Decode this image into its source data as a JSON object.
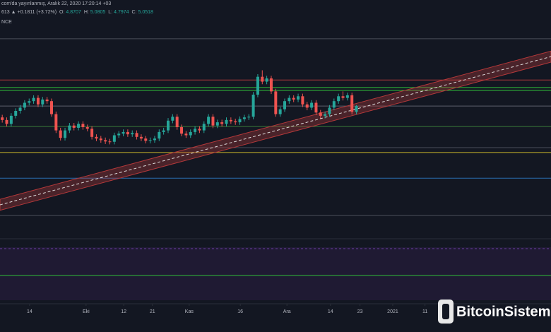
{
  "chart_data": {
    "type": "candlestick",
    "header": {
      "line1": "com'da yayınlanmış, Aralık 22, 2020 17:20:14 +03",
      "change": "613 ▲ +0.1811 (+3.72%)",
      "o": "O:",
      "h": "H:",
      "l": "L:",
      "c": "C:",
      "pane": "NCE"
    },
    "up_color": "#26a69a",
    "down_color": "#ef5350",
    "candles": [
      [
        4.7,
        4.78,
        4.54,
        4.62
      ],
      [
        4.62,
        4.7,
        4.42,
        4.5
      ],
      [
        4.5,
        4.83,
        4.42,
        4.75
      ],
      [
        4.75,
        4.98,
        4.67,
        4.9
      ],
      [
        4.9,
        5.08,
        4.82,
        5.0
      ],
      [
        5.0,
        5.23,
        4.92,
        5.15
      ],
      [
        5.15,
        5.28,
        5.07,
        5.2
      ],
      [
        5.2,
        5.38,
        5.12,
        5.3
      ],
      [
        5.3,
        5.38,
        5.02,
        5.1
      ],
      [
        5.1,
        5.33,
        5.02,
        5.25
      ],
      [
        5.25,
        5.33,
        5.12,
        5.2
      ],
      [
        5.2,
        5.28,
        4.72,
        4.8
      ],
      [
        4.8,
        4.88,
        4.22,
        4.3
      ],
      [
        4.3,
        4.38,
        3.99,
        4.07
      ],
      [
        4.07,
        4.38,
        3.99,
        4.3
      ],
      [
        4.3,
        4.53,
        4.22,
        4.45
      ],
      [
        4.45,
        4.53,
        4.3,
        4.38
      ],
      [
        4.38,
        4.58,
        4.3,
        4.5
      ],
      [
        4.5,
        4.58,
        4.32,
        4.4
      ],
      [
        4.4,
        4.48,
        4.27,
        4.35
      ],
      [
        4.35,
        4.43,
        4.02,
        4.1
      ],
      [
        4.1,
        4.18,
        3.97,
        4.05
      ],
      [
        4.05,
        4.13,
        3.92,
        4.0
      ],
      [
        4.0,
        4.08,
        3.88,
        3.96
      ],
      [
        3.96,
        4.04,
        3.87,
        3.95
      ],
      [
        3.95,
        4.23,
        3.87,
        4.15
      ],
      [
        4.15,
        4.28,
        4.07,
        4.2
      ],
      [
        4.2,
        4.33,
        4.12,
        4.25
      ],
      [
        4.25,
        4.33,
        4.1,
        4.18
      ],
      [
        4.18,
        4.3,
        4.1,
        4.22
      ],
      [
        4.22,
        4.3,
        4.02,
        4.1
      ],
      [
        4.1,
        4.18,
        3.97,
        4.05
      ],
      [
        4.05,
        4.13,
        3.9,
        3.98
      ],
      [
        3.98,
        4.08,
        3.9,
        4.0
      ],
      [
        4.0,
        4.13,
        3.92,
        4.05
      ],
      [
        4.05,
        4.33,
        3.97,
        4.25
      ],
      [
        4.25,
        4.38,
        4.17,
        4.3
      ],
      [
        4.3,
        4.68,
        4.22,
        4.6
      ],
      [
        4.6,
        4.8,
        4.52,
        4.72
      ],
      [
        4.72,
        4.8,
        4.32,
        4.4
      ],
      [
        4.4,
        4.48,
        4.12,
        4.2
      ],
      [
        4.2,
        4.28,
        4.07,
        4.15
      ],
      [
        4.15,
        4.33,
        4.07,
        4.25
      ],
      [
        4.25,
        4.43,
        4.17,
        4.35
      ],
      [
        4.35,
        4.43,
        4.22,
        4.3
      ],
      [
        4.3,
        4.58,
        4.22,
        4.5
      ],
      [
        4.5,
        4.8,
        4.42,
        4.72
      ],
      [
        4.72,
        4.8,
        4.37,
        4.45
      ],
      [
        4.45,
        4.63,
        4.37,
        4.55
      ],
      [
        4.55,
        4.63,
        4.42,
        4.5
      ],
      [
        4.5,
        4.7,
        4.42,
        4.62
      ],
      [
        4.62,
        4.7,
        4.5,
        4.58
      ],
      [
        4.58,
        4.66,
        4.47,
        4.55
      ],
      [
        4.55,
        4.73,
        4.47,
        4.65
      ],
      [
        4.65,
        4.78,
        4.57,
        4.7
      ],
      [
        4.7,
        4.8,
        4.62,
        4.72
      ],
      [
        4.72,
        5.48,
        4.64,
        5.4
      ],
      [
        5.4,
        6.03,
        5.32,
        5.95
      ],
      [
        5.95,
        6.15,
        5.72,
        5.8
      ],
      [
        5.8,
        5.98,
        5.72,
        5.9
      ],
      [
        5.9,
        5.98,
        5.42,
        5.5
      ],
      [
        5.5,
        5.58,
        4.72,
        4.8
      ],
      [
        4.8,
        5.03,
        4.72,
        4.95
      ],
      [
        4.95,
        5.28,
        4.87,
        5.2
      ],
      [
        5.2,
        5.38,
        5.12,
        5.3
      ],
      [
        5.3,
        5.38,
        5.17,
        5.25
      ],
      [
        5.25,
        5.43,
        5.17,
        5.35
      ],
      [
        5.35,
        5.43,
        5.02,
        5.1
      ],
      [
        5.1,
        5.18,
        4.92,
        5.0
      ],
      [
        5.0,
        5.23,
        4.92,
        5.15
      ],
      [
        5.15,
        5.23,
        4.77,
        4.85
      ],
      [
        4.85,
        4.93,
        4.67,
        4.75
      ],
      [
        4.75,
        4.88,
        4.67,
        4.8
      ],
      [
        4.8,
        5.08,
        4.72,
        5.0
      ],
      [
        5.0,
        5.28,
        4.92,
        5.2
      ],
      [
        5.2,
        5.43,
        5.12,
        5.35
      ],
      [
        5.35,
        5.5,
        5.22,
        5.3
      ],
      [
        5.3,
        5.46,
        5.22,
        5.38
      ],
      [
        5.38,
        5.46,
        4.79,
        4.87
      ],
      [
        4.8707,
        5.0805,
        4.7974,
        5.0518
      ]
    ],
    "xlim": [
      -0.5,
      122.4
    ],
    "ylim": [
      1.14,
      7.66
    ],
    "xticks": [
      {
        "value": 6.1,
        "label": "14"
      },
      {
        "value": 18.7,
        "label": "Eki"
      },
      {
        "value": 27.1,
        "label": "12"
      },
      {
        "value": 33.5,
        "label": "21"
      },
      {
        "value": 41.7,
        "label": "Kas"
      },
      {
        "value": 53.1,
        "label": "16"
      },
      {
        "value": 63.5,
        "label": "Ara"
      },
      {
        "value": 73.2,
        "label": "14"
      },
      {
        "value": 79.8,
        "label": "23"
      },
      {
        "value": 87.1,
        "label": "2021"
      },
      {
        "value": 94.3,
        "label": "11"
      }
    ],
    "levels": [
      {
        "value": 7.12,
        "color": "#4a4e5a"
      },
      {
        "value": 5.85,
        "color": "#b2383a"
      },
      {
        "value": 5.62,
        "color": "#2fbf3a"
      },
      {
        "value": 5.53,
        "color": "#2fbf3a"
      },
      {
        "value": 5.05,
        "color": "#5d606b"
      },
      {
        "value": 4.42,
        "color": "#3a7a3a"
      },
      {
        "value": 3.77,
        "color": "#4a4e5a"
      },
      {
        "value": 3.62,
        "color": "#c9b52a"
      },
      {
        "value": 2.83,
        "color": "#2a6fb0"
      },
      {
        "value": 1.68,
        "color": "#4a4e5a"
      }
    ],
    "trendline": {
      "from": [
        -0.5,
        2.01
      ],
      "to": [
        122.4,
        6.57
      ],
      "width": 0.17,
      "color": "#b2383a"
    },
    "watermark": "BitcoinSistemi"
  }
}
